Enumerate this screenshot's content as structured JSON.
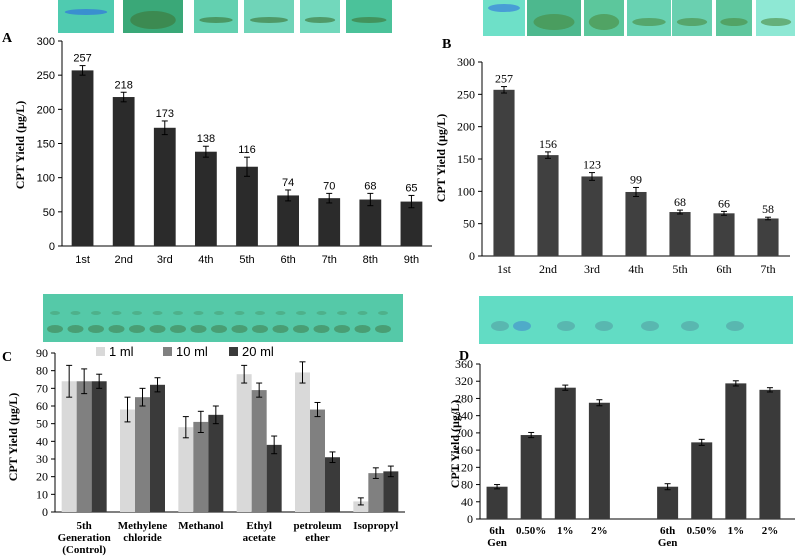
{
  "chart_data": [
    {
      "panel": "A",
      "type": "bar",
      "ylabel": "CPT Yield (µg/L)",
      "ylim": [
        0,
        300
      ],
      "yticks": [
        0,
        50,
        100,
        150,
        200,
        250,
        300
      ],
      "categories": [
        "1st",
        "2nd",
        "3rd",
        "4th",
        "5th",
        "6th",
        "7th",
        "8th",
        "9th"
      ],
      "values": [
        257,
        218,
        173,
        138,
        116,
        74,
        70,
        68,
        65
      ],
      "errors": [
        7,
        7,
        10,
        8,
        14,
        8,
        7,
        9,
        9
      ],
      "labels": [
        "257",
        "218",
        "173",
        "138",
        "116",
        "74",
        "70",
        "68",
        "65"
      ],
      "bar_color": "#2b2b2b"
    },
    {
      "panel": "B",
      "type": "bar",
      "ylabel": "CPT Yield (µg/L)",
      "ylim": [
        0,
        300
      ],
      "yticks": [
        0,
        50,
        100,
        150,
        200,
        250,
        300
      ],
      "categories": [
        "1st",
        "2nd",
        "3rd",
        "4th",
        "5th",
        "6th",
        "7th"
      ],
      "values": [
        257,
        156,
        123,
        99,
        68,
        66,
        58
      ],
      "errors": [
        5,
        5,
        6,
        7,
        3,
        3,
        2
      ],
      "labels": [
        "257",
        "156",
        "123",
        "99",
        "68",
        "66",
        "58"
      ],
      "bar_color": "#404040"
    },
    {
      "panel": "C",
      "type": "bar",
      "ylabel": "CPT Yield (µg/L)",
      "ylim": [
        0,
        90
      ],
      "yticks": [
        0,
        10,
        20,
        30,
        40,
        50,
        60,
        70,
        80,
        90
      ],
      "categories": [
        "5th Generation (Control)",
        "Methylene chloride",
        "Methanol",
        "Ethyl acetate",
        "petroleum ether",
        "Isopropyl"
      ],
      "category_lines": [
        [
          "5th",
          "Generation",
          "(Control)"
        ],
        [
          "Methylene",
          "chloride"
        ],
        [
          "Methanol"
        ],
        [
          "Ethyl",
          "acetate"
        ],
        [
          "petroleum",
          "ether"
        ],
        [
          "Isopropyl"
        ]
      ],
      "legend": [
        "1 ml",
        "10 ml",
        "20 ml"
      ],
      "series": [
        {
          "name": "1 ml",
          "color": "#d9d9d9",
          "values": [
            74,
            58,
            48,
            78,
            79,
            6
          ],
          "errors": [
            9,
            7,
            6,
            5,
            6,
            2
          ]
        },
        {
          "name": "10 ml",
          "color": "#808080",
          "values": [
            74,
            65,
            51,
            69,
            58,
            22
          ],
          "errors": [
            7,
            5,
            6,
            4,
            4,
            3
          ]
        },
        {
          "name": "20 ml",
          "color": "#3a3a3a",
          "values": [
            74,
            72,
            55,
            38,
            31,
            23
          ],
          "errors": [
            4,
            4,
            5,
            5,
            3,
            3
          ]
        }
      ]
    },
    {
      "panel": "D",
      "type": "bar",
      "ylabel": "CPT Yield (µg/L)",
      "ylim": [
        0,
        360
      ],
      "yticks": [
        0,
        40,
        80,
        120,
        160,
        200,
        240,
        280,
        320,
        360
      ],
      "categories": [
        "6th Gen",
        "0.50%",
        "1%",
        "2%",
        "",
        "6th Gen",
        "0.50%",
        "1%",
        "2%"
      ],
      "category_lines": [
        [
          "6th",
          "Gen"
        ],
        [
          "0.50%"
        ],
        [
          "1%"
        ],
        [
          "2%"
        ],
        [],
        [
          "6th",
          "Gen"
        ],
        [
          "0.50%"
        ],
        [
          "1%"
        ],
        [
          "2%"
        ]
      ],
      "values": [
        75,
        195,
        305,
        270,
        null,
        75,
        178,
        315,
        300
      ],
      "errors": [
        5,
        6,
        6,
        7,
        null,
        7,
        7,
        6,
        5
      ],
      "bar_color": "#3a3a3a"
    }
  ],
  "panel_labels": [
    "A",
    "B",
    "C",
    "D"
  ],
  "strips": {
    "A": {
      "bg": "#45c2a0",
      "tints": [
        "#4fcbb0",
        "#3aa878",
        "#63d0b0",
        "#6fd4b8",
        "#72d8bc",
        "#4bc29a"
      ]
    },
    "B": {
      "bg": "#5fd6bc",
      "tints": [
        "#6ee0c8",
        "#4db88e",
        "#5cc79c",
        "#68d2b2",
        "#6ad0b0",
        "#5fc79e",
        "#8ee8d4"
      ]
    },
    "C": {
      "bg": "#55c9a8",
      "tint": "#4fbf9c"
    },
    "D": {
      "bg": "#62dcc4",
      "tint": "#5ecdb6"
    }
  }
}
